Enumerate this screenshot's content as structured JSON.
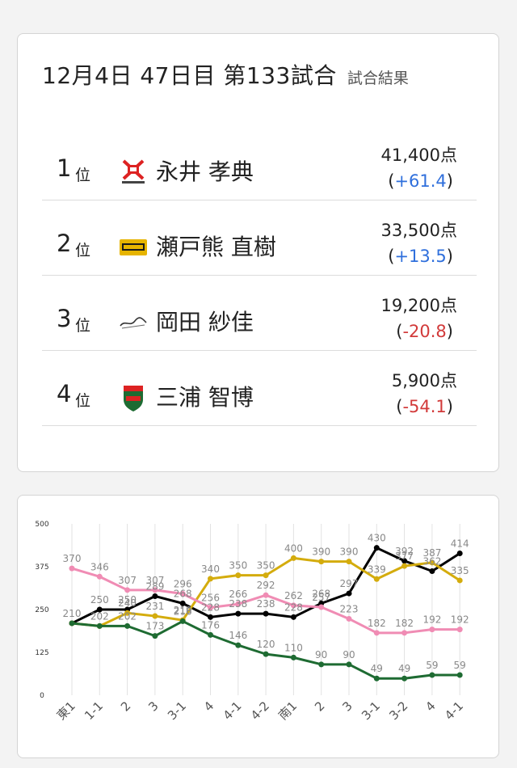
{
  "header": {
    "title": "12月4日  47日目  第133試合",
    "subtitle": "試合結果"
  },
  "results": [
    {
      "rank": "1",
      "rank_unit": "位",
      "team_icon": "fu-rinkazan-logo-icon",
      "name": "永井 孝典",
      "score": "41,400点",
      "delta": "+61.4",
      "delta_color": "#2f6fdc"
    },
    {
      "rank": "2",
      "rank_unit": "位",
      "team_icon": "raiden-logo-icon",
      "name": "瀬戸熊 直樹",
      "score": "33,500点",
      "delta": "+13.5",
      "delta_color": "#2f6fdc"
    },
    {
      "rank": "3",
      "rank_unit": "位",
      "team_icon": "sakura-knights-logo-icon",
      "name": "岡田 紗佳",
      "score": "19,200点",
      "delta": "-20.8",
      "delta_color": "#d23a3a"
    },
    {
      "rank": "4",
      "rank_unit": "位",
      "team_icon": "jets-logo-icon",
      "name": "三浦 智博",
      "score": "5,900点",
      "delta": "-54.1",
      "delta_color": "#d23a3a"
    }
  ],
  "chart_data": {
    "type": "line",
    "categories": [
      "東1",
      "1-1",
      "2",
      "3",
      "3-1",
      "4",
      "4-1",
      "4-2",
      "南1",
      "2",
      "3",
      "3-1",
      "3-2",
      "4",
      "4-1"
    ],
    "ylim": [
      0,
      500
    ],
    "yticks": [
      0,
      125,
      250,
      375,
      500
    ],
    "grid": "vertical",
    "series": [
      {
        "color": "#000000",
        "values": [
          210,
          250,
          250,
          289,
          268,
          228,
          238,
          238,
          228,
          268,
          297,
          430,
          392,
          362,
          414
        ],
        "labels": [
          "210",
          "250",
          "250",
          "289",
          "268",
          "228",
          "238",
          "238",
          "228",
          "268",
          "297",
          "430",
          "392",
          "362",
          "414"
        ]
      },
      {
        "color": "#d4ac0d",
        "values": [
          210,
          202,
          240,
          231,
          219,
          340,
          350,
          350,
          400,
          390,
          390,
          339,
          377,
          387,
          335
        ],
        "labels": [
          "",
          "202",
          "240",
          "231",
          "219",
          "340",
          "350",
          "350",
          "400",
          "390",
          "390",
          "339",
          "377",
          "387",
          "335"
        ]
      },
      {
        "color": "#f08cb4",
        "values": [
          370,
          346,
          307,
          307,
          296,
          256,
          266,
          292,
          262,
          257,
          223,
          182,
          182,
          192,
          192
        ],
        "labels": [
          "370",
          "346",
          "307",
          "307",
          "296",
          "256",
          "266",
          "292",
          "262",
          "257",
          "223",
          "182",
          "182",
          "192",
          "192"
        ]
      },
      {
        "color": "#1e6b32",
        "values": [
          210,
          202,
          202,
          173,
          216,
          176,
          146,
          120,
          110,
          90,
          90,
          49,
          49,
          59,
          59
        ],
        "labels": [
          "",
          "",
          "202",
          "173",
          "216",
          "176",
          "146",
          "120",
          "110",
          "90",
          "90",
          "49",
          "49",
          "59",
          "59"
        ]
      }
    ]
  }
}
